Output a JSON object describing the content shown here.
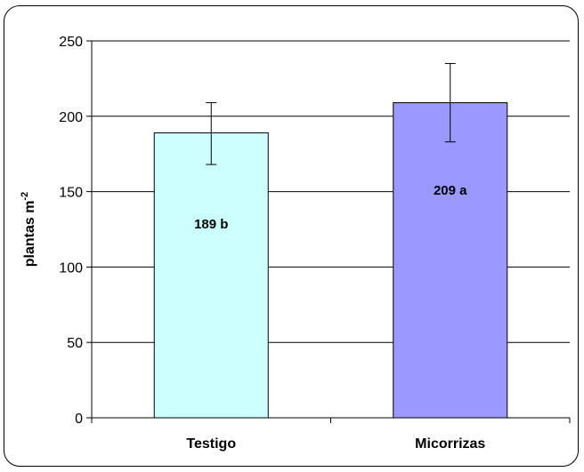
{
  "chart_data": {
    "type": "bar",
    "categories": [
      "Testigo",
      "Micorrizas"
    ],
    "values": [
      189,
      209
    ],
    "error_low": [
      168,
      183
    ],
    "error_high": [
      209,
      235
    ],
    "data_labels": [
      "189 b",
      "209 a"
    ],
    "colors": [
      "#ccffff",
      "#9999ff"
    ],
    "ylabel": "plantas m",
    "ylabel_superscript": "-2",
    "ylim": [
      0,
      250
    ],
    "yticks": [
      0,
      50,
      100,
      150,
      200,
      250
    ],
    "grid": true
  }
}
